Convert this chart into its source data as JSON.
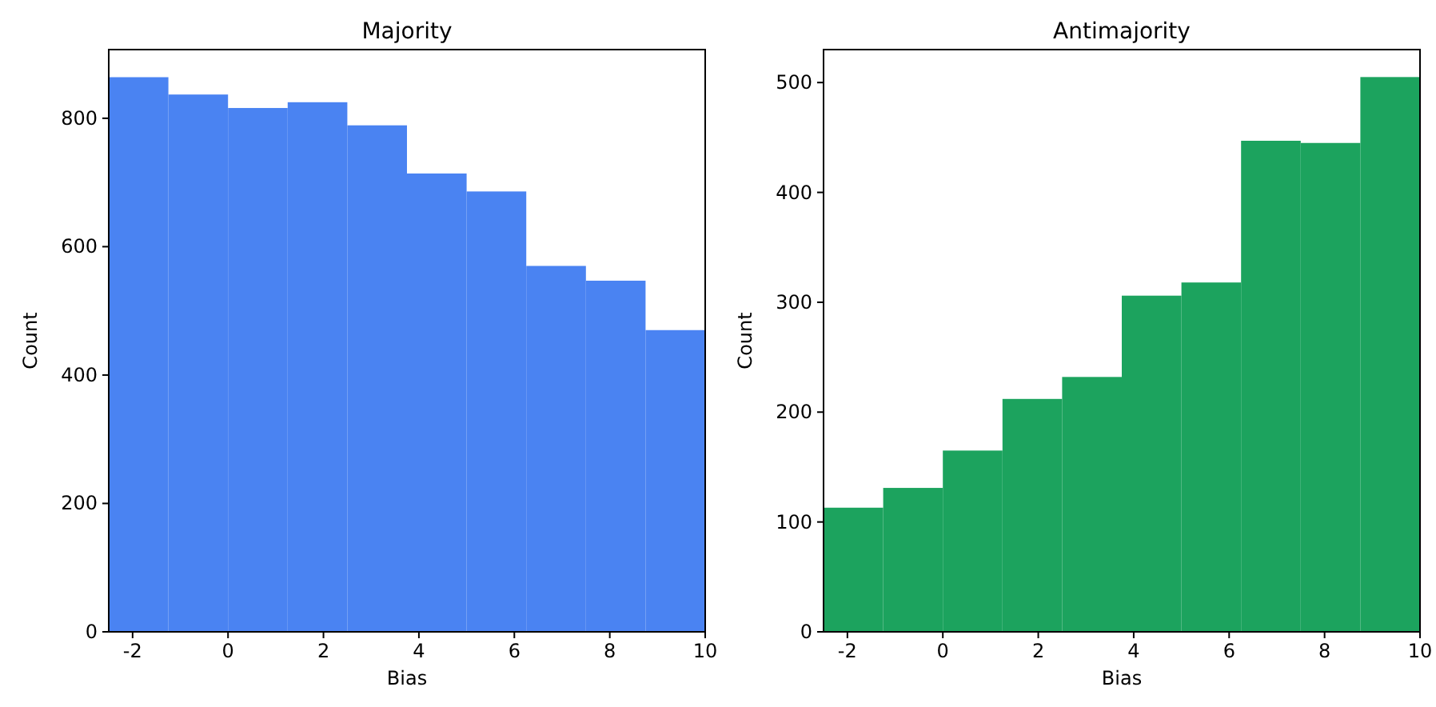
{
  "chart_data": [
    {
      "type": "histogram",
      "title": "Majority",
      "xlabel": "Bias",
      "ylabel": "Count",
      "bins": [
        -2.5,
        -1.25,
        0,
        1.25,
        2.5,
        3.75,
        5,
        6.25,
        7.5,
        8.75,
        10
      ],
      "values": [
        864,
        837,
        816,
        825,
        789,
        714,
        686,
        570,
        547,
        470
      ],
      "color": "#4a83f2",
      "xlim": [
        -2.5,
        10
      ],
      "xticks": [
        -2,
        0,
        2,
        4,
        6,
        8,
        10
      ],
      "ylim": [
        0,
        907
      ],
      "yticks": [
        0,
        200,
        400,
        600,
        800
      ]
    },
    {
      "type": "histogram",
      "title": "Antimajority",
      "xlabel": "Bias",
      "ylabel": "Count",
      "bins": [
        -2.5,
        -1.25,
        0,
        1.25,
        2.5,
        3.75,
        5,
        6.25,
        7.5,
        8.75,
        10
      ],
      "values": [
        113,
        131,
        165,
        212,
        232,
        306,
        318,
        447,
        445,
        505
      ],
      "color": "#1ca35e",
      "xlim": [
        -2.5,
        10
      ],
      "xticks": [
        -2,
        0,
        2,
        4,
        6,
        8,
        10
      ],
      "ylim": [
        0,
        530
      ],
      "yticks": [
        0,
        100,
        200,
        300,
        400,
        500
      ]
    }
  ]
}
